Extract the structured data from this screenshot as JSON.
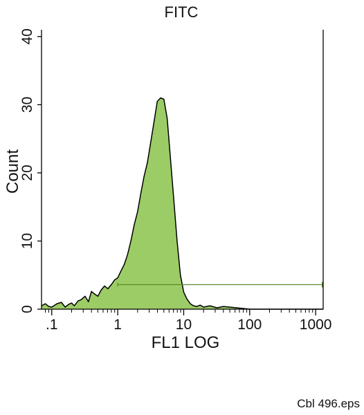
{
  "chart_data": {
    "type": "area",
    "title": "FITC",
    "xlabel": "FL1 LOG",
    "ylabel": "Count",
    "x_scale": "log",
    "xlim": [
      0.07,
      1300
    ],
    "ylim": [
      0,
      41
    ],
    "x_ticks": [
      {
        "value": 0.1,
        "label": ".1"
      },
      {
        "value": 1,
        "label": "1"
      },
      {
        "value": 10,
        "label": "10"
      },
      {
        "value": 100,
        "label": "100"
      },
      {
        "value": 1000,
        "label": "1000"
      }
    ],
    "y_ticks": [
      {
        "value": 0,
        "label": "0"
      },
      {
        "value": 10,
        "label": "10"
      },
      {
        "value": 20,
        "label": "20"
      },
      {
        "value": 30,
        "label": "30"
      },
      {
        "value": 40,
        "label": "40"
      }
    ],
    "grid": false,
    "fill_color": "#9ccc65",
    "line_color": "#000000",
    "gate_color": "#5b8a2a",
    "series": [
      {
        "x": [
          0.07,
          0.08,
          0.09,
          0.1,
          0.12,
          0.14,
          0.16,
          0.18,
          0.2,
          0.22,
          0.25,
          0.28,
          0.32,
          0.36,
          0.4,
          0.45,
          0.5,
          0.56,
          0.63,
          0.71,
          0.8,
          0.9,
          1.0,
          1.12,
          1.26,
          1.41,
          1.58,
          1.78,
          2.0,
          2.24,
          2.51,
          2.82,
          3.16,
          3.55,
          3.98,
          4.47,
          5.01,
          5.62,
          6.31,
          7.08,
          7.94,
          8.91,
          10.0,
          11.2,
          12.6,
          14.1,
          15.8,
          17.8,
          20.0,
          25.0,
          32.0,
          40.0,
          50.0,
          63.0,
          80.0,
          100.0,
          200.0,
          500.0,
          1300.0
        ],
        "y": [
          0.5,
          0.8,
          0.4,
          0.3,
          0.8,
          1.0,
          0.3,
          0.7,
          0.9,
          0.5,
          1.2,
          1.4,
          1.9,
          1.1,
          2.6,
          2.2,
          1.9,
          2.8,
          3.4,
          3.0,
          3.6,
          4.3,
          4.6,
          5.6,
          6.6,
          8.0,
          10.0,
          12.4,
          14.3,
          17.0,
          19.5,
          21.5,
          24.5,
          27.5,
          30.5,
          31.0,
          30.8,
          28.0,
          22.0,
          16.0,
          10.0,
          5.0,
          2.5,
          1.5,
          0.8,
          0.5,
          0.4,
          0.6,
          0.3,
          0.5,
          0.2,
          0.4,
          0.3,
          0.2,
          0.1,
          0.0,
          0.0,
          0.0,
          0.0
        ]
      }
    ],
    "gate": {
      "x_start": 1.0,
      "x_end": 1300,
      "y": 3.6
    }
  },
  "footer": {
    "filename": "Cbl 496.eps"
  }
}
